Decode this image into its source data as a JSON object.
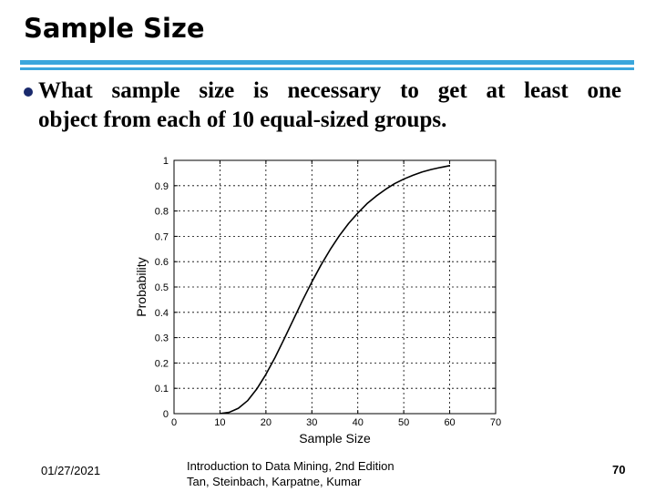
{
  "slide": {
    "title": "Sample Size",
    "bullet_line1": "What sample size is necessary to get at least one",
    "bullet_line2": "object from each of 10 equal-sized groups.",
    "accent_color": "#3aa6dc",
    "bullet_color": "#1a2a6c"
  },
  "footer": {
    "date": "01/27/2021",
    "source_line1": "Introduction to Data Mining, 2nd Edition",
    "source_line2": "Tan, Steinbach, Karpatne, Kumar",
    "page": "70"
  },
  "chart_data": {
    "type": "line",
    "xlabel": "Sample Size",
    "ylabel": "Probability",
    "xlim": [
      0,
      70
    ],
    "ylim": [
      0,
      1
    ],
    "xticks": [
      "0",
      "10",
      "20",
      "30",
      "40",
      "50",
      "60",
      "70"
    ],
    "yticks": [
      "0",
      "0.1",
      "0.2",
      "0.3",
      "0.4",
      "0.5",
      "0.6",
      "0.7",
      "0.8",
      "0.9",
      "1"
    ],
    "grid": true,
    "series": [
      {
        "x": [
          10,
          12,
          14,
          16,
          18,
          20,
          22,
          24,
          26,
          28,
          30,
          32,
          34,
          36,
          38,
          40,
          42,
          44,
          46,
          48,
          50,
          52,
          54,
          56,
          58,
          60
        ],
        "y": [
          0.0004,
          0.0052,
          0.021,
          0.051,
          0.097,
          0.155,
          0.222,
          0.296,
          0.372,
          0.448,
          0.52,
          0.587,
          0.648,
          0.703,
          0.751,
          0.792,
          0.829,
          0.859,
          0.885,
          0.908,
          0.926,
          0.941,
          0.954,
          0.964,
          0.972,
          0.979
        ]
      }
    ]
  }
}
